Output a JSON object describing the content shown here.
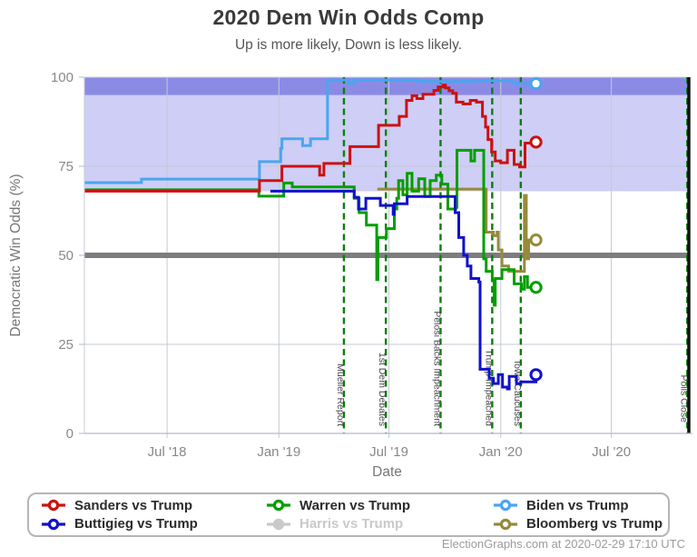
{
  "header": {
    "title": "2020 Dem Win Odds Comp",
    "subtitle": "Up is more likely, Down is less likely."
  },
  "footer": {
    "credit": "ElectionGraphs.com at 2020-02-29 17:10 UTC"
  },
  "legend": {
    "entries": [
      {
        "key": "sanders",
        "label": "Sanders vs Trump",
        "color": "#cc1111",
        "inactive": false
      },
      {
        "key": "warren",
        "label": "Warren vs Trump",
        "color": "#009f00",
        "inactive": false
      },
      {
        "key": "biden",
        "label": "Biden vs Trump",
        "color": "#4aa5f0",
        "inactive": false
      },
      {
        "key": "buttigieg",
        "label": "Buttigieg vs Trump",
        "color": "#1111cc",
        "inactive": false
      },
      {
        "key": "harris",
        "label": "Harris vs Trump",
        "color": "#c9c9c9",
        "inactive": true
      },
      {
        "key": "bloomberg",
        "label": "Bloomberg vs Trump",
        "color": "#978a3a",
        "inactive": false
      }
    ]
  },
  "chart_data": {
    "type": "line",
    "title": "2020 Dem Win Odds Comp",
    "xlabel": "Date",
    "ylabel": "Democratic Win Odds (%)",
    "ylim": [
      0,
      100
    ],
    "yticks": [
      0,
      25,
      50,
      75,
      100
    ],
    "x_domain": [
      "2018-02-15",
      "2020-11-07"
    ],
    "xticks": [
      {
        "label": "Jul '18",
        "date": "2018-07-01"
      },
      {
        "label": "Jan '19",
        "date": "2019-01-01"
      },
      {
        "label": "Jul '19",
        "date": "2019-07-01"
      },
      {
        "label": "Jan '20",
        "date": "2020-01-01"
      },
      {
        "label": "Jul '20",
        "date": "2020-07-01"
      }
    ],
    "bands": [
      {
        "from": 68,
        "to": 100,
        "color": "#cecef6"
      },
      {
        "from": 95,
        "to": 100,
        "color": "#8b8be6"
      }
    ],
    "reference_line": {
      "value": 50,
      "color": "#7d7d7d",
      "width": 6
    },
    "right_border": {
      "color": "#111111",
      "width": 3.5
    },
    "grid_color": "#c4c9d4",
    "events": [
      {
        "label": "Mueller Report",
        "date": "2019-04-18"
      },
      {
        "label": "1st Dem Debates",
        "date": "2019-06-26"
      },
      {
        "label": "Pelosi Backs Impeachment",
        "date": "2019-09-24"
      },
      {
        "label": "Trump Impeached",
        "date": "2019-12-18"
      },
      {
        "label": "Iowa Caucuses",
        "date": "2020-02-03"
      },
      {
        "label": "Polls Close",
        "date": "2020-11-03"
      }
    ],
    "event_color": "#0c7d0c",
    "series": [
      {
        "name": "Biden vs Trump",
        "key": "biden",
        "color": "#4aa5f0",
        "end_marker": true,
        "points": [
          [
            "2018-02-15",
            70.4
          ],
          [
            "2018-05-18",
            70.4
          ],
          [
            "2018-05-20",
            71.4
          ],
          [
            "2018-11-28",
            71.4
          ],
          [
            "2018-11-30",
            76.3
          ],
          [
            "2018-12-28",
            76.3
          ],
          [
            "2019-01-04",
            80
          ],
          [
            "2019-01-06",
            82.7
          ],
          [
            "2019-02-07",
            82.7
          ],
          [
            "2019-02-09",
            80.8
          ],
          [
            "2019-02-20",
            80.8
          ],
          [
            "2019-02-22",
            82.7
          ],
          [
            "2019-03-20",
            82.7
          ],
          [
            "2019-03-22",
            99.2
          ],
          [
            "2019-04-24",
            99.2
          ],
          [
            "2019-04-26",
            98.3
          ],
          [
            "2019-05-04",
            99.2
          ],
          [
            "2019-08-15",
            99.2
          ],
          [
            "2019-08-17",
            98.8
          ],
          [
            "2019-11-15",
            99.0
          ],
          [
            "2020-01-18",
            99.0
          ],
          [
            "2020-01-20",
            98.3
          ],
          [
            "2020-02-28",
            98.2
          ]
        ]
      },
      {
        "name": "Bloomberg vs Trump",
        "key": "bloomberg",
        "color": "#978a3a",
        "end_marker": true,
        "points": [
          [
            "2019-06-12",
            68.6
          ],
          [
            "2019-12-06",
            68.6
          ],
          [
            "2019-12-08",
            56.5
          ],
          [
            "2019-12-20",
            55.5
          ],
          [
            "2019-12-26",
            56.5
          ],
          [
            "2019-12-28",
            51.5
          ],
          [
            "2020-01-01",
            51.5
          ],
          [
            "2020-01-03",
            47
          ],
          [
            "2020-01-12",
            47
          ],
          [
            "2020-01-14",
            45.5
          ],
          [
            "2020-02-07",
            45.5
          ],
          [
            "2020-02-09",
            66.8
          ],
          [
            "2020-02-11",
            66.8
          ],
          [
            "2020-02-12",
            49
          ],
          [
            "2020-02-14",
            49
          ],
          [
            "2020-02-16",
            54.3
          ],
          [
            "2020-02-28",
            54.3
          ]
        ]
      },
      {
        "name": "Warren vs Trump",
        "key": "warren",
        "color": "#009f00",
        "end_marker": true,
        "points": [
          [
            "2018-02-15",
            68.4
          ],
          [
            "2018-11-27",
            68.4
          ],
          [
            "2018-11-29",
            66.6
          ],
          [
            "2019-01-07",
            66.6
          ],
          [
            "2019-01-09",
            70.3
          ],
          [
            "2019-01-21",
            70.3
          ],
          [
            "2019-01-23",
            69.2
          ],
          [
            "2019-05-03",
            69.2
          ],
          [
            "2019-05-05",
            66
          ],
          [
            "2019-05-13",
            62
          ],
          [
            "2019-05-25",
            58.5
          ],
          [
            "2019-06-09",
            58.5
          ],
          [
            "2019-06-11",
            43.2
          ],
          [
            "2019-06-13",
            55
          ],
          [
            "2019-06-27",
            57.5
          ],
          [
            "2019-07-10",
            63
          ],
          [
            "2019-07-14",
            66
          ],
          [
            "2019-07-17",
            71
          ],
          [
            "2019-07-24",
            67
          ],
          [
            "2019-07-31",
            73
          ],
          [
            "2019-08-08",
            68
          ],
          [
            "2019-08-19",
            71.5
          ],
          [
            "2019-08-29",
            66.5
          ],
          [
            "2019-09-07",
            71
          ],
          [
            "2019-09-17",
            72.5
          ],
          [
            "2019-09-26",
            70
          ],
          [
            "2019-10-06",
            63
          ],
          [
            "2019-10-19",
            63.5
          ],
          [
            "2019-10-21",
            79.5
          ],
          [
            "2019-11-09",
            79.5
          ],
          [
            "2019-11-13",
            76.5
          ],
          [
            "2019-11-19",
            79.5
          ],
          [
            "2019-12-02",
            79.5
          ],
          [
            "2019-12-04",
            49
          ],
          [
            "2019-12-08",
            45.5
          ],
          [
            "2019-12-18",
            43
          ],
          [
            "2019-12-21",
            36
          ],
          [
            "2019-12-23",
            43.5
          ],
          [
            "2020-01-01",
            43.5
          ],
          [
            "2020-01-03",
            46
          ],
          [
            "2020-01-21",
            46
          ],
          [
            "2020-01-23",
            42
          ],
          [
            "2020-02-02",
            42
          ],
          [
            "2020-02-04",
            40.5
          ],
          [
            "2020-02-09",
            44
          ],
          [
            "2020-02-14",
            41
          ],
          [
            "2020-02-28",
            41
          ]
        ]
      },
      {
        "name": "Buttigieg vs Trump",
        "key": "buttigieg",
        "color": "#1111cc",
        "end_marker": true,
        "points": [
          [
            "2018-12-18",
            68
          ],
          [
            "2019-05-03",
            68
          ],
          [
            "2019-05-05",
            66.3
          ],
          [
            "2019-05-12",
            63
          ],
          [
            "2019-05-22",
            63
          ],
          [
            "2019-05-24",
            66
          ],
          [
            "2019-06-15",
            66
          ],
          [
            "2019-06-17",
            64
          ],
          [
            "2019-07-08",
            61.5
          ],
          [
            "2019-07-10",
            64.5
          ],
          [
            "2019-07-31",
            66.5
          ],
          [
            "2019-10-14",
            66.5
          ],
          [
            "2019-10-18",
            62
          ],
          [
            "2019-10-24",
            55
          ],
          [
            "2019-11-01",
            50
          ],
          [
            "2019-11-07",
            47
          ],
          [
            "2019-11-13",
            43.5
          ],
          [
            "2019-11-26",
            42.5
          ],
          [
            "2019-11-28",
            18
          ],
          [
            "2019-12-13",
            15.5
          ],
          [
            "2019-12-20",
            14
          ],
          [
            "2019-12-28",
            16.5
          ],
          [
            "2020-01-04",
            13
          ],
          [
            "2020-01-12",
            12.5
          ],
          [
            "2020-01-15",
            16
          ],
          [
            "2020-01-27",
            14
          ],
          [
            "2020-02-03",
            14.5
          ],
          [
            "2020-02-28",
            16.5
          ]
        ]
      },
      {
        "name": "Sanders vs Trump",
        "key": "sanders",
        "color": "#cc1111",
        "end_marker": true,
        "points": [
          [
            "2018-02-15",
            68
          ],
          [
            "2018-11-28",
            68
          ],
          [
            "2018-11-30",
            71
          ],
          [
            "2019-01-04",
            71
          ],
          [
            "2019-01-06",
            75
          ],
          [
            "2019-03-07",
            75
          ],
          [
            "2019-03-09",
            72.5
          ],
          [
            "2019-03-14",
            72.5
          ],
          [
            "2019-03-16",
            75.8
          ],
          [
            "2019-04-26",
            75.8
          ],
          [
            "2019-04-28",
            80.5
          ],
          [
            "2019-06-12",
            80.5
          ],
          [
            "2019-06-14",
            86.5
          ],
          [
            "2019-07-16",
            86.5
          ],
          [
            "2019-07-18",
            89
          ],
          [
            "2019-07-28",
            89
          ],
          [
            "2019-07-30",
            93.5
          ],
          [
            "2019-08-06",
            93.5
          ],
          [
            "2019-08-08",
            94.8
          ],
          [
            "2019-08-16",
            94
          ],
          [
            "2019-08-26",
            95.2
          ],
          [
            "2019-09-13",
            96.3
          ],
          [
            "2019-09-20",
            97.3
          ],
          [
            "2019-09-28",
            97.8
          ],
          [
            "2019-10-02",
            97
          ],
          [
            "2019-10-08",
            96.2
          ],
          [
            "2019-10-14",
            95.5
          ],
          [
            "2019-10-20",
            93
          ],
          [
            "2019-10-31",
            92.5
          ],
          [
            "2019-11-12",
            93.5
          ],
          [
            "2019-11-22",
            93
          ],
          [
            "2019-12-02",
            89
          ],
          [
            "2019-12-07",
            86
          ],
          [
            "2019-12-11",
            82.5
          ],
          [
            "2019-12-17",
            79
          ],
          [
            "2019-12-23",
            76.5
          ],
          [
            "2020-01-01",
            76
          ],
          [
            "2020-01-12",
            79.5
          ],
          [
            "2020-01-21",
            79.5
          ],
          [
            "2020-01-23",
            75.5
          ],
          [
            "2020-01-30",
            75.5
          ],
          [
            "2020-02-01",
            74.8
          ],
          [
            "2020-02-08",
            74.8
          ],
          [
            "2020-02-10",
            81.5
          ],
          [
            "2020-02-28",
            81.8
          ]
        ]
      },
      {
        "name": "Harris vs Trump",
        "key": "harris",
        "color": "#c9c9c9",
        "end_marker": false,
        "inactive": true,
        "points": []
      }
    ]
  }
}
